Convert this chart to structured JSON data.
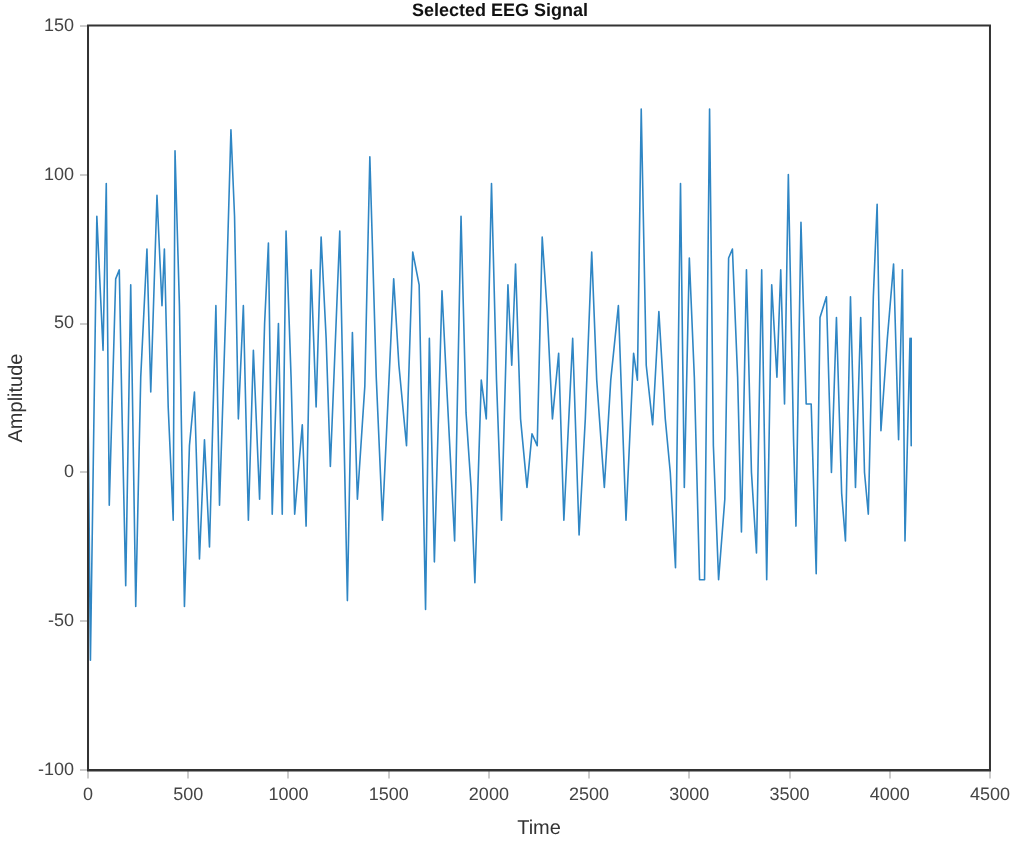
{
  "chart_data": {
    "type": "line",
    "title": "Selected EEG Signal",
    "xlabel": "Time",
    "ylabel": "Amplitude",
    "xlim": [
      0,
      4500
    ],
    "xticks": [
      0,
      500,
      1000,
      1500,
      2000,
      2500,
      3000,
      3500,
      4000,
      4500
    ],
    "ylim": [
      -100,
      150
    ],
    "yticks": [
      -100,
      -50,
      0,
      50,
      100,
      150
    ],
    "grid": false,
    "legend": false,
    "marker": "none",
    "line_style": "solid",
    "series": [
      {
        "color": "#2f86c4",
        "x": [
          0,
          12,
          44,
          75,
          91,
          106,
          138,
          156,
          169,
          188,
          213,
          238,
          263,
          294,
          313,
          344,
          369,
          381,
          400,
          425,
          434,
          456,
          481,
          506,
          531,
          556,
          581,
          606,
          638,
          656,
          688,
          713,
          731,
          750,
          775,
          800,
          825,
          856,
          881,
          900,
          919,
          950,
          969,
          988,
          1013,
          1031,
          1069,
          1088,
          1113,
          1138,
          1163,
          1188,
          1209,
          1256,
          1294,
          1319,
          1344,
          1381,
          1406,
          1438,
          1469,
          1525,
          1551,
          1589,
          1620,
          1652,
          1684,
          1703,
          1728,
          1766,
          1791,
          1829,
          1861,
          1886,
          1911,
          1930,
          1962,
          1987,
          2013,
          2038,
          2063,
          2095,
          2114,
          2133,
          2158,
          2190,
          2215,
          2241,
          2266,
          2291,
          2317,
          2348,
          2374,
          2418,
          2450,
          2481,
          2513,
          2538,
          2576,
          2608,
          2646,
          2684,
          2722,
          2741,
          2760,
          2785,
          2817,
          2848,
          2880,
          2905,
          2931,
          2956,
          2975,
          3000,
          3025,
          3051,
          3076,
          3101,
          3120,
          3146,
          3177,
          3196,
          3215,
          3241,
          3260,
          3285,
          3310,
          3335,
          3361,
          3386,
          3411,
          3437,
          3456,
          3475,
          3494,
          3520,
          3532,
          3557,
          3583,
          3608,
          3633,
          3652,
          3684,
          3709,
          3734,
          3760,
          3779,
          3804,
          3829,
          3855,
          3874,
          3893,
          3918,
          3937,
          3956,
          3988,
          4019,
          4044,
          4063,
          4076,
          4101,
          4107
        ],
        "values": [
          22,
          -63,
          86,
          41,
          97,
          -11,
          65,
          68,
          22,
          -38,
          63,
          -45,
          32,
          75,
          27,
          93,
          56,
          75,
          22,
          -16,
          108,
          56,
          -45,
          9,
          27,
          -29,
          11,
          -25,
          56,
          -11,
          56,
          115,
          86,
          18,
          56,
          -16,
          41,
          -9,
          50,
          77,
          -14,
          50,
          -14,
          81,
          32,
          -14,
          16,
          -18,
          68,
          22,
          79,
          45,
          2,
          81,
          -43,
          47,
          -9,
          29,
          106,
          32,
          -16,
          65,
          36,
          9,
          74,
          63,
          -46,
          45,
          -30,
          61,
          27,
          -23,
          86,
          20,
          -5,
          -37,
          31,
          18,
          97,
          31,
          -16,
          63,
          36,
          70,
          18,
          -5,
          13,
          9,
          79,
          54,
          18,
          40,
          -16,
          45,
          -21,
          18,
          74,
          31,
          -5,
          31,
          56,
          -16,
          40,
          31,
          122,
          36,
          16,
          54,
          18,
          0,
          -32,
          97,
          -5,
          72,
          32,
          -36,
          -36,
          122,
          9,
          -36,
          -9,
          72,
          75,
          32,
          -20,
          68,
          0,
          -27,
          68,
          -36,
          63,
          32,
          68,
          23,
          100,
          11,
          -18,
          84,
          23,
          23,
          -34,
          52,
          59,
          0,
          52,
          -7,
          -23,
          59,
          -5,
          52,
          0,
          -14,
          59,
          90,
          14,
          45,
          70,
          11,
          68,
          -23,
          45,
          9
        ]
      }
    ]
  }
}
